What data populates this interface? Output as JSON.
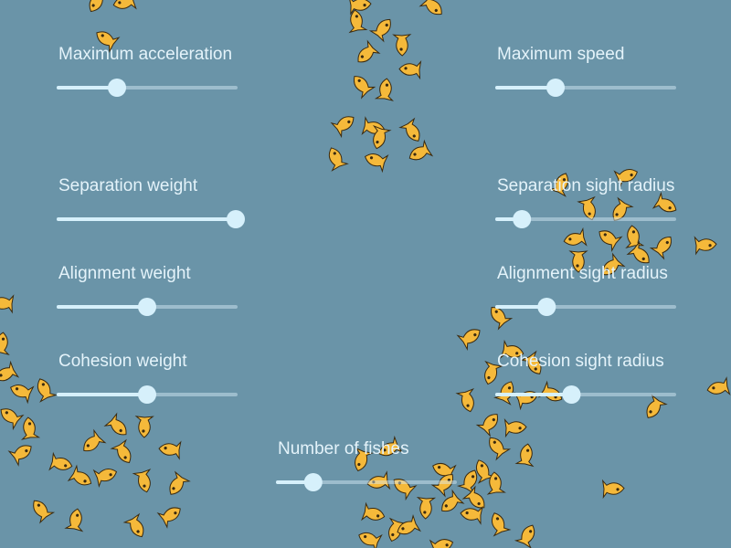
{
  "sliders": [
    {
      "label": "Maximum acceleration",
      "value": 0.33
    },
    {
      "label": "Maximum speed",
      "value": 0.33
    },
    {
      "label": "Separation weight",
      "value": 1.0
    },
    {
      "label": "Separation sight radius",
      "value": 0.14
    },
    {
      "label": "Alignment weight",
      "value": 0.5
    },
    {
      "label": "Alignment sight radius",
      "value": 0.28
    },
    {
      "label": "Cohesion weight",
      "value": 0.5
    },
    {
      "label": "Cohesion sight radius",
      "value": 0.42
    },
    {
      "label": "Number of fishes",
      "value": 0.2
    }
  ]
}
